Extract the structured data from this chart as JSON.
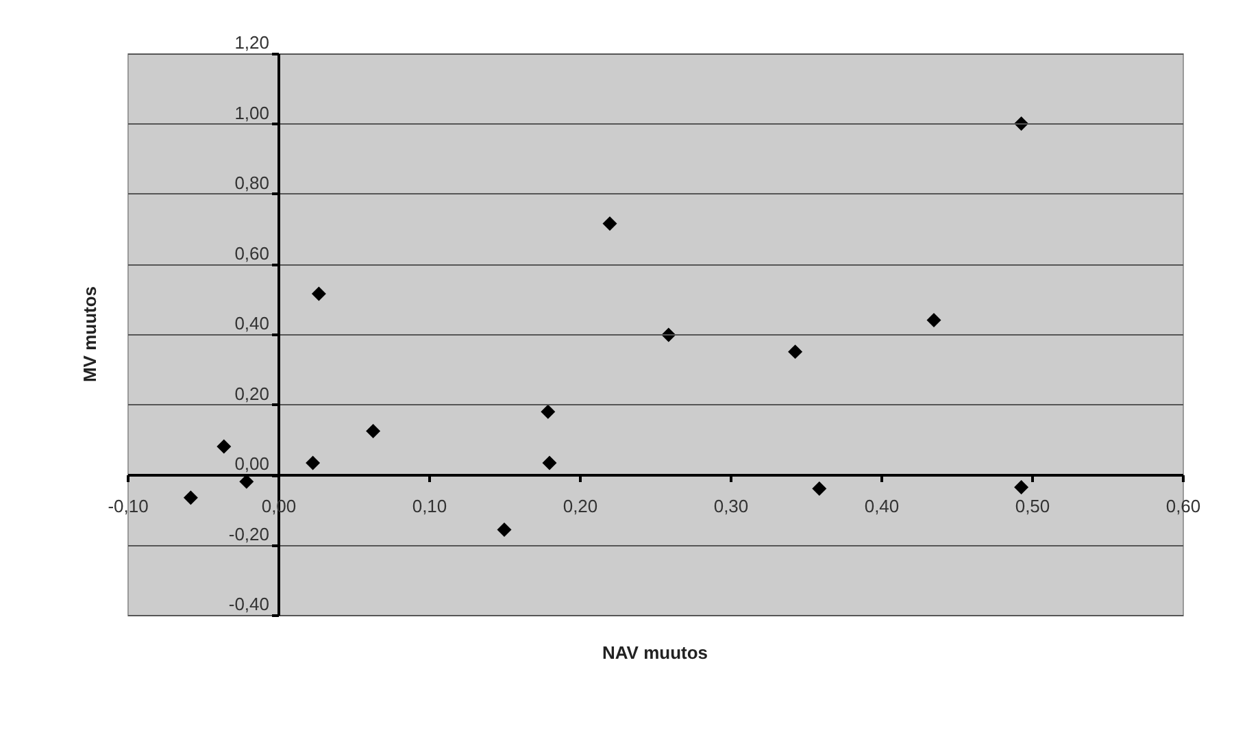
{
  "chart_data": {
    "type": "scatter",
    "xlabel": "NAV muutos",
    "ylabel": "MV muutos",
    "marker": "diamond",
    "grid": "y",
    "xlim": [
      -0.1,
      0.6
    ],
    "ylim": [
      -0.4,
      1.2
    ],
    "xticks": [
      {
        "value": -0.1,
        "label": "-0,10"
      },
      {
        "value": 0,
        "label": "0,00"
      },
      {
        "value": 0.1,
        "label": "0,10"
      },
      {
        "value": 0.2,
        "label": "0,20"
      },
      {
        "value": 0.3,
        "label": "0,30"
      },
      {
        "value": 0.4,
        "label": "0,40"
      },
      {
        "value": 0.5,
        "label": "0,50"
      },
      {
        "value": 0.6,
        "label": "0,60"
      }
    ],
    "yticks": [
      {
        "value": -0.4,
        "label": "-0,40"
      },
      {
        "value": -0.2,
        "label": "-0,20"
      },
      {
        "value": 0,
        "label": "0,00"
      },
      {
        "value": 0.2,
        "label": "0,20"
      },
      {
        "value": 0.4,
        "label": "0,40"
      },
      {
        "value": 0.6,
        "label": "0,60"
      },
      {
        "value": 0.8,
        "label": "0,80"
      },
      {
        "value": 1.0,
        "label": "1,00"
      },
      {
        "value": 1.2,
        "label": "1,20"
      }
    ],
    "series": [
      {
        "color": "#000000",
        "x": [
          -0.058,
          -0.036,
          -0.021,
          0.023,
          0.027,
          0.063,
          0.15,
          0.179,
          0.18,
          0.22,
          0.259,
          0.343,
          0.359,
          0.435,
          0.493,
          0.493
        ],
        "values": [
          -0.066,
          0.08,
          -0.02,
          0.033,
          0.515,
          0.124,
          -0.157,
          0.179,
          0.033,
          0.715,
          0.398,
          0.35,
          -0.04,
          0.44,
          1.0,
          -0.036
        ]
      }
    ]
  }
}
